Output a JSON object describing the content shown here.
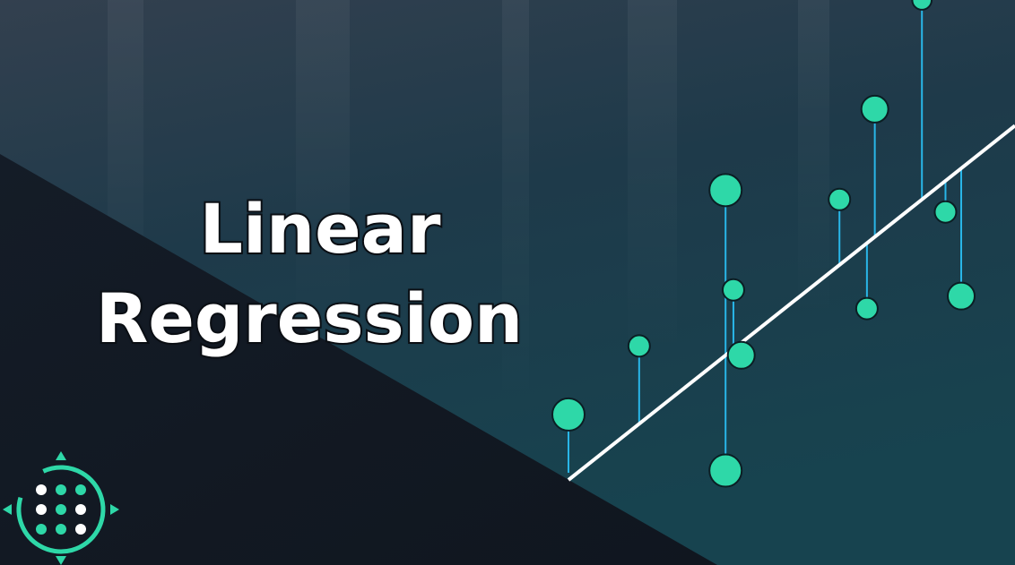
{
  "title": {
    "line1": "Linear",
    "line2": "Regression"
  },
  "colors": {
    "accent": "#2ed8a8",
    "residual": "#29b6e8",
    "fit_line": "#ffffff",
    "dark_panel": "#121a24",
    "background_top": "#2b3b4c",
    "background_bottom": "#1b4350"
  },
  "icons": {
    "logo": "dot-grid-compass-logo"
  },
  "chart_data": {
    "type": "scatter",
    "fit_line": {
      "x0": 0,
      "y0": 0,
      "x1": 10,
      "y1": 10
    },
    "points": [
      {
        "x": 0.0,
        "y": 2.1,
        "size": 3
      },
      {
        "x": 1.8,
        "y": 4.3,
        "size": 2
      },
      {
        "x": 4.0,
        "y": 9.3,
        "size": 3
      },
      {
        "x": 4.0,
        "y": 0.3,
        "size": 3
      },
      {
        "x": 4.2,
        "y": 6.1,
        "size": 2
      },
      {
        "x": 4.4,
        "y": 4.0,
        "size": 2.5
      },
      {
        "x": 6.9,
        "y": 9.0,
        "size": 2
      },
      {
        "x": 7.8,
        "y": 11.9,
        "size": 2.5
      },
      {
        "x": 7.6,
        "y": 5.5,
        "size": 2
      },
      {
        "x": 9.0,
        "y": 15.4,
        "size": 1.8
      },
      {
        "x": 9.6,
        "y": 8.6,
        "size": 2
      },
      {
        "x": 10.0,
        "y": 5.9,
        "size": 2.5
      }
    ]
  }
}
